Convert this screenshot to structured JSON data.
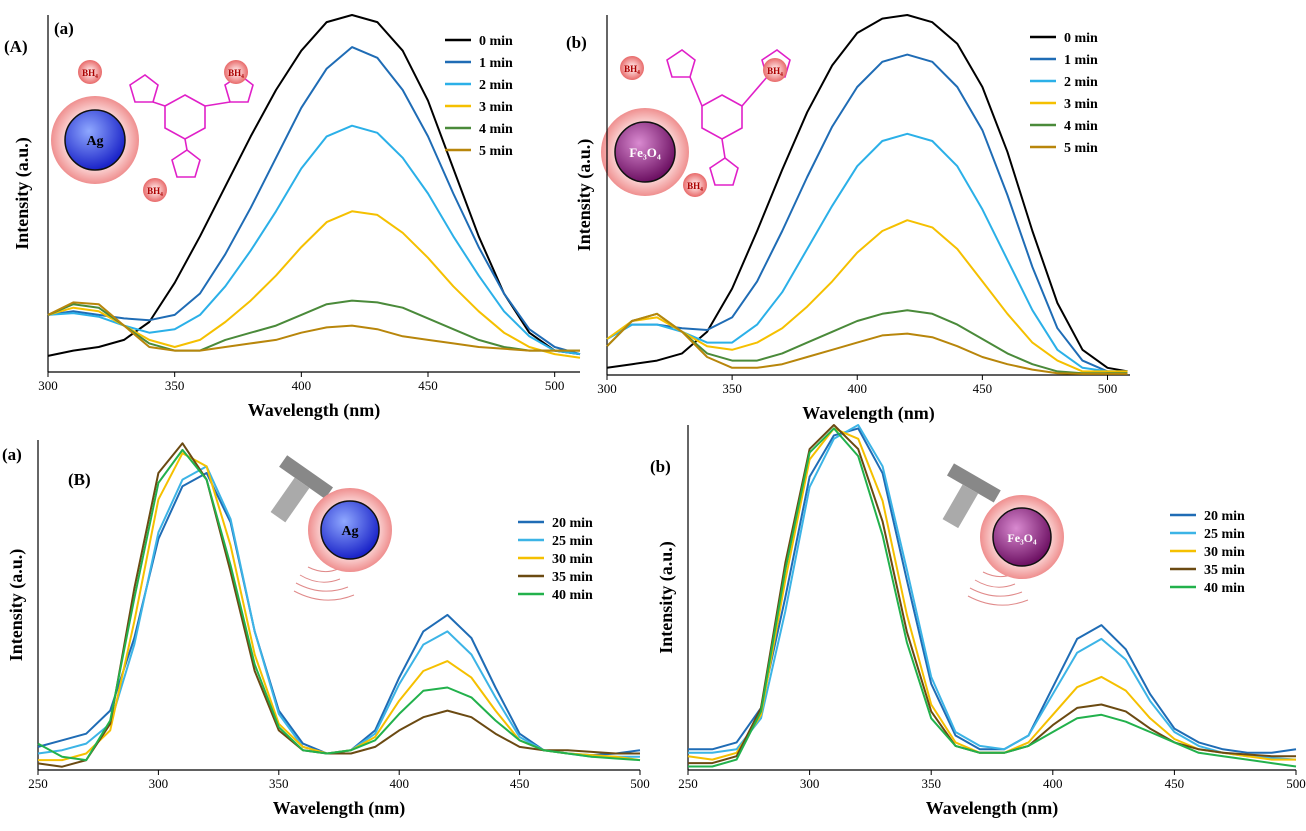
{
  "chart_data": [
    {
      "type": "line",
      "figure_label": "(A)",
      "panel_label": "(a)",
      "particle_label": "Ag",
      "counter_ion": "BH₄",
      "x_label": "Wavelength (nm)",
      "y_label": "Intensity (a.u.)",
      "xlim": [
        300,
        510
      ],
      "xticks": [
        300,
        350,
        400,
        450,
        500
      ],
      "ylim": [
        0,
        100
      ],
      "x": [
        300,
        310,
        320,
        330,
        340,
        350,
        360,
        370,
        380,
        390,
        400,
        410,
        420,
        430,
        440,
        450,
        460,
        470,
        480,
        490,
        500,
        510
      ],
      "series": [
        {
          "name": "0 min",
          "color": "#000000",
          "values": [
            4.5,
            6,
            7,
            9,
            14,
            25,
            38,
            52,
            66,
            79,
            90,
            98,
            100,
            98,
            90,
            76,
            57,
            38,
            22,
            11,
            6,
            5
          ]
        },
        {
          "name": "1 min",
          "color": "#1f6cb5",
          "values": [
            16,
            17,
            16,
            15,
            14.5,
            16,
            22,
            33,
            46,
            60,
            74,
            85,
            91,
            88,
            79,
            66,
            50,
            35,
            22,
            12,
            7,
            5
          ]
        },
        {
          "name": "2 min",
          "color": "#2bb0e8",
          "values": [
            16,
            16.5,
            15.5,
            13,
            11,
            12,
            16,
            24,
            34,
            45,
            57,
            66,
            69,
            67,
            60,
            50,
            38,
            27,
            17,
            10,
            6,
            5
          ]
        },
        {
          "name": "3 min",
          "color": "#f5c000",
          "values": [
            16,
            18,
            17,
            13,
            9,
            7,
            9,
            14,
            20,
            27,
            35,
            42,
            45,
            44,
            39,
            32,
            24,
            17,
            11,
            7,
            5,
            4
          ]
        },
        {
          "name": "4 min",
          "color": "#4a8a3a",
          "values": [
            16,
            19,
            18,
            13,
            8,
            6,
            6,
            9,
            11,
            13,
            16,
            19,
            20,
            19.5,
            18,
            15,
            12,
            9,
            7,
            6,
            6,
            6
          ]
        },
        {
          "name": "5 min",
          "color": "#b8860b",
          "values": [
            16,
            19.5,
            19,
            13,
            7,
            6,
            6,
            7,
            8,
            9,
            11,
            12.5,
            13,
            12,
            10,
            9,
            8,
            7,
            6.5,
            6,
            6,
            6
          ]
        }
      ]
    },
    {
      "type": "line",
      "panel_label": "(b)",
      "particle_label": "Fe₃O₄",
      "counter_ion": "BH₄",
      "x_label": "Wavelength (nm)",
      "y_label": "Intensity (a.u.)",
      "xlim": [
        300,
        509
      ],
      "xticks": [
        300,
        350,
        400,
        450,
        500
      ],
      "ylim": [
        0,
        100
      ],
      "x": [
        300,
        310,
        320,
        330,
        340,
        350,
        360,
        370,
        380,
        390,
        400,
        410,
        420,
        430,
        440,
        450,
        460,
        470,
        480,
        490,
        500,
        508
      ],
      "series": [
        {
          "name": "0 min",
          "color": "#000000",
          "values": [
            2,
            3,
            4,
            6,
            12,
            24,
            40,
            57,
            73,
            86,
            95,
            99,
            100,
            98,
            92,
            80,
            62,
            40,
            20,
            7,
            2,
            1
          ]
        },
        {
          "name": "1 min",
          "color": "#1f6cb5",
          "values": [
            10,
            14,
            14,
            13,
            12.5,
            16,
            26,
            40,
            55,
            69,
            80,
            87,
            89,
            87,
            80,
            68,
            50,
            30,
            13,
            4,
            1,
            1
          ]
        },
        {
          "name": "2 min",
          "color": "#2bb0e8",
          "values": [
            10,
            14,
            14,
            12,
            9,
            9,
            14,
            23,
            35,
            47,
            58,
            65,
            67,
            65,
            58,
            46,
            32,
            18,
            7,
            2,
            1,
            1
          ]
        },
        {
          "name": "3 min",
          "color": "#f5c000",
          "values": [
            10,
            15,
            16,
            12,
            8,
            7,
            9,
            13,
            19,
            26,
            34,
            40,
            43,
            41,
            35,
            26,
            17,
            9,
            4,
            1,
            1,
            1
          ]
        },
        {
          "name": "4 min",
          "color": "#4a8a3a",
          "values": [
            8,
            15,
            17,
            12,
            6,
            4,
            4,
            6,
            9,
            12,
            15,
            17,
            18,
            17,
            14,
            10,
            6,
            3,
            1,
            0.5,
            0.5,
            0.5
          ]
        },
        {
          "name": "5 min",
          "color": "#b8860b",
          "values": [
            8,
            15,
            17,
            12,
            5,
            2,
            2,
            3,
            5,
            7,
            9,
            11,
            11.5,
            10.5,
            8,
            5,
            3,
            1.5,
            0.5,
            0.3,
            0.3,
            0.3
          ]
        }
      ]
    },
    {
      "type": "line",
      "figure_label": "(B)",
      "panel_label": "(a)",
      "particle_label": "Ag",
      "x_label": "Wavelength (nm)",
      "y_label": "Intensity (a.u.)",
      "xlim": [
        250,
        500
      ],
      "xticks": [
        250,
        300,
        350,
        400,
        450,
        500
      ],
      "ylim": [
        0,
        100
      ],
      "x": [
        250,
        260,
        270,
        280,
        290,
        300,
        310,
        320,
        330,
        340,
        350,
        360,
        370,
        380,
        390,
        400,
        410,
        420,
        430,
        440,
        450,
        460,
        470,
        480,
        490,
        500
      ],
      "series": [
        {
          "name": "20 min",
          "color": "#1f6cb5",
          "values": [
            7,
            9,
            11,
            18,
            40,
            70,
            86,
            90,
            75,
            42,
            18,
            8,
            5,
            6,
            12,
            28,
            42,
            47,
            40,
            25,
            11,
            6,
            5,
            4.5,
            5,
            6
          ]
        },
        {
          "name": "25 min",
          "color": "#3cb4e6",
          "values": [
            5,
            6,
            8,
            14,
            38,
            72,
            88,
            92,
            76,
            42,
            17,
            7,
            5,
            6,
            11,
            26,
            38,
            42,
            35,
            22,
            10,
            6,
            5,
            4,
            4,
            4
          ]
        },
        {
          "name": "30 min",
          "color": "#f5c000",
          "values": [
            3,
            3,
            5,
            12,
            45,
            82,
            96,
            92,
            68,
            35,
            14,
            7,
            5,
            6,
            10,
            21,
            30,
            33,
            28,
            18,
            9,
            6,
            5,
            4.5,
            4,
            3
          ]
        },
        {
          "name": "35 min",
          "color": "#6b4a12",
          "values": [
            2,
            1,
            3,
            14,
            55,
            90,
            99,
            88,
            60,
            30,
            12,
            6,
            5,
            5,
            7,
            12,
            16,
            18,
            16,
            11,
            7,
            6,
            6,
            5.5,
            5,
            5
          ]
        },
        {
          "name": "40 min",
          "color": "#22b14c",
          "values": [
            8,
            4,
            3,
            15,
            52,
            87,
            97,
            88,
            62,
            32,
            13,
            6,
            5,
            6,
            9,
            17,
            24,
            25,
            22,
            15,
            9,
            6,
            5,
            4,
            3.5,
            3
          ]
        }
      ]
    },
    {
      "type": "line",
      "panel_label": "(b)",
      "particle_label": "Fe₃O₄",
      "x_label": "Wavelength (nm)",
      "y_label": "Intensity (a.u.)",
      "xlim": [
        250,
        500
      ],
      "xticks": [
        250,
        300,
        350,
        400,
        450,
        500
      ],
      "ylim": [
        0,
        100
      ],
      "x": [
        250,
        260,
        270,
        280,
        290,
        300,
        310,
        320,
        330,
        340,
        350,
        360,
        370,
        380,
        390,
        400,
        410,
        420,
        430,
        440,
        450,
        460,
        470,
        480,
        490,
        500
      ],
      "series": [
        {
          "name": "20 min",
          "color": "#1f6cb5",
          "values": [
            6,
            6,
            8,
            18,
            50,
            85,
            97,
            99,
            86,
            55,
            25,
            10,
            6,
            6,
            10,
            24,
            38,
            42,
            35,
            22,
            12,
            8,
            6,
            5,
            5,
            6
          ]
        },
        {
          "name": "25 min",
          "color": "#3cb4e6",
          "values": [
            5,
            5,
            6,
            15,
            46,
            82,
            96,
            100,
            88,
            58,
            27,
            11,
            7,
            6,
            10,
            22,
            34,
            38,
            32,
            20,
            11,
            7,
            5,
            4,
            3.5,
            3
          ]
        },
        {
          "name": "30 min",
          "color": "#f5c000",
          "values": [
            4,
            3,
            5,
            16,
            55,
            90,
            99,
            96,
            78,
            45,
            19,
            8,
            5,
            5,
            8,
            16,
            24,
            27,
            23,
            15,
            9,
            6,
            5,
            4,
            3,
            3
          ]
        },
        {
          "name": "35 min",
          "color": "#6b4a12",
          "values": [
            2,
            2,
            4,
            18,
            60,
            93,
            100,
            93,
            72,
            40,
            17,
            7,
            5,
            5,
            7,
            13,
            18,
            19,
            17,
            12,
            8,
            6,
            5,
            4.5,
            4,
            4
          ]
        },
        {
          "name": "40 min",
          "color": "#22b14c",
          "values": [
            1,
            1,
            3,
            17,
            58,
            92,
            99,
            91,
            68,
            37,
            15,
            7,
            5,
            5,
            7,
            11,
            15,
            16,
            14,
            11,
            8,
            5,
            4,
            3,
            2,
            1
          ]
        }
      ]
    }
  ]
}
